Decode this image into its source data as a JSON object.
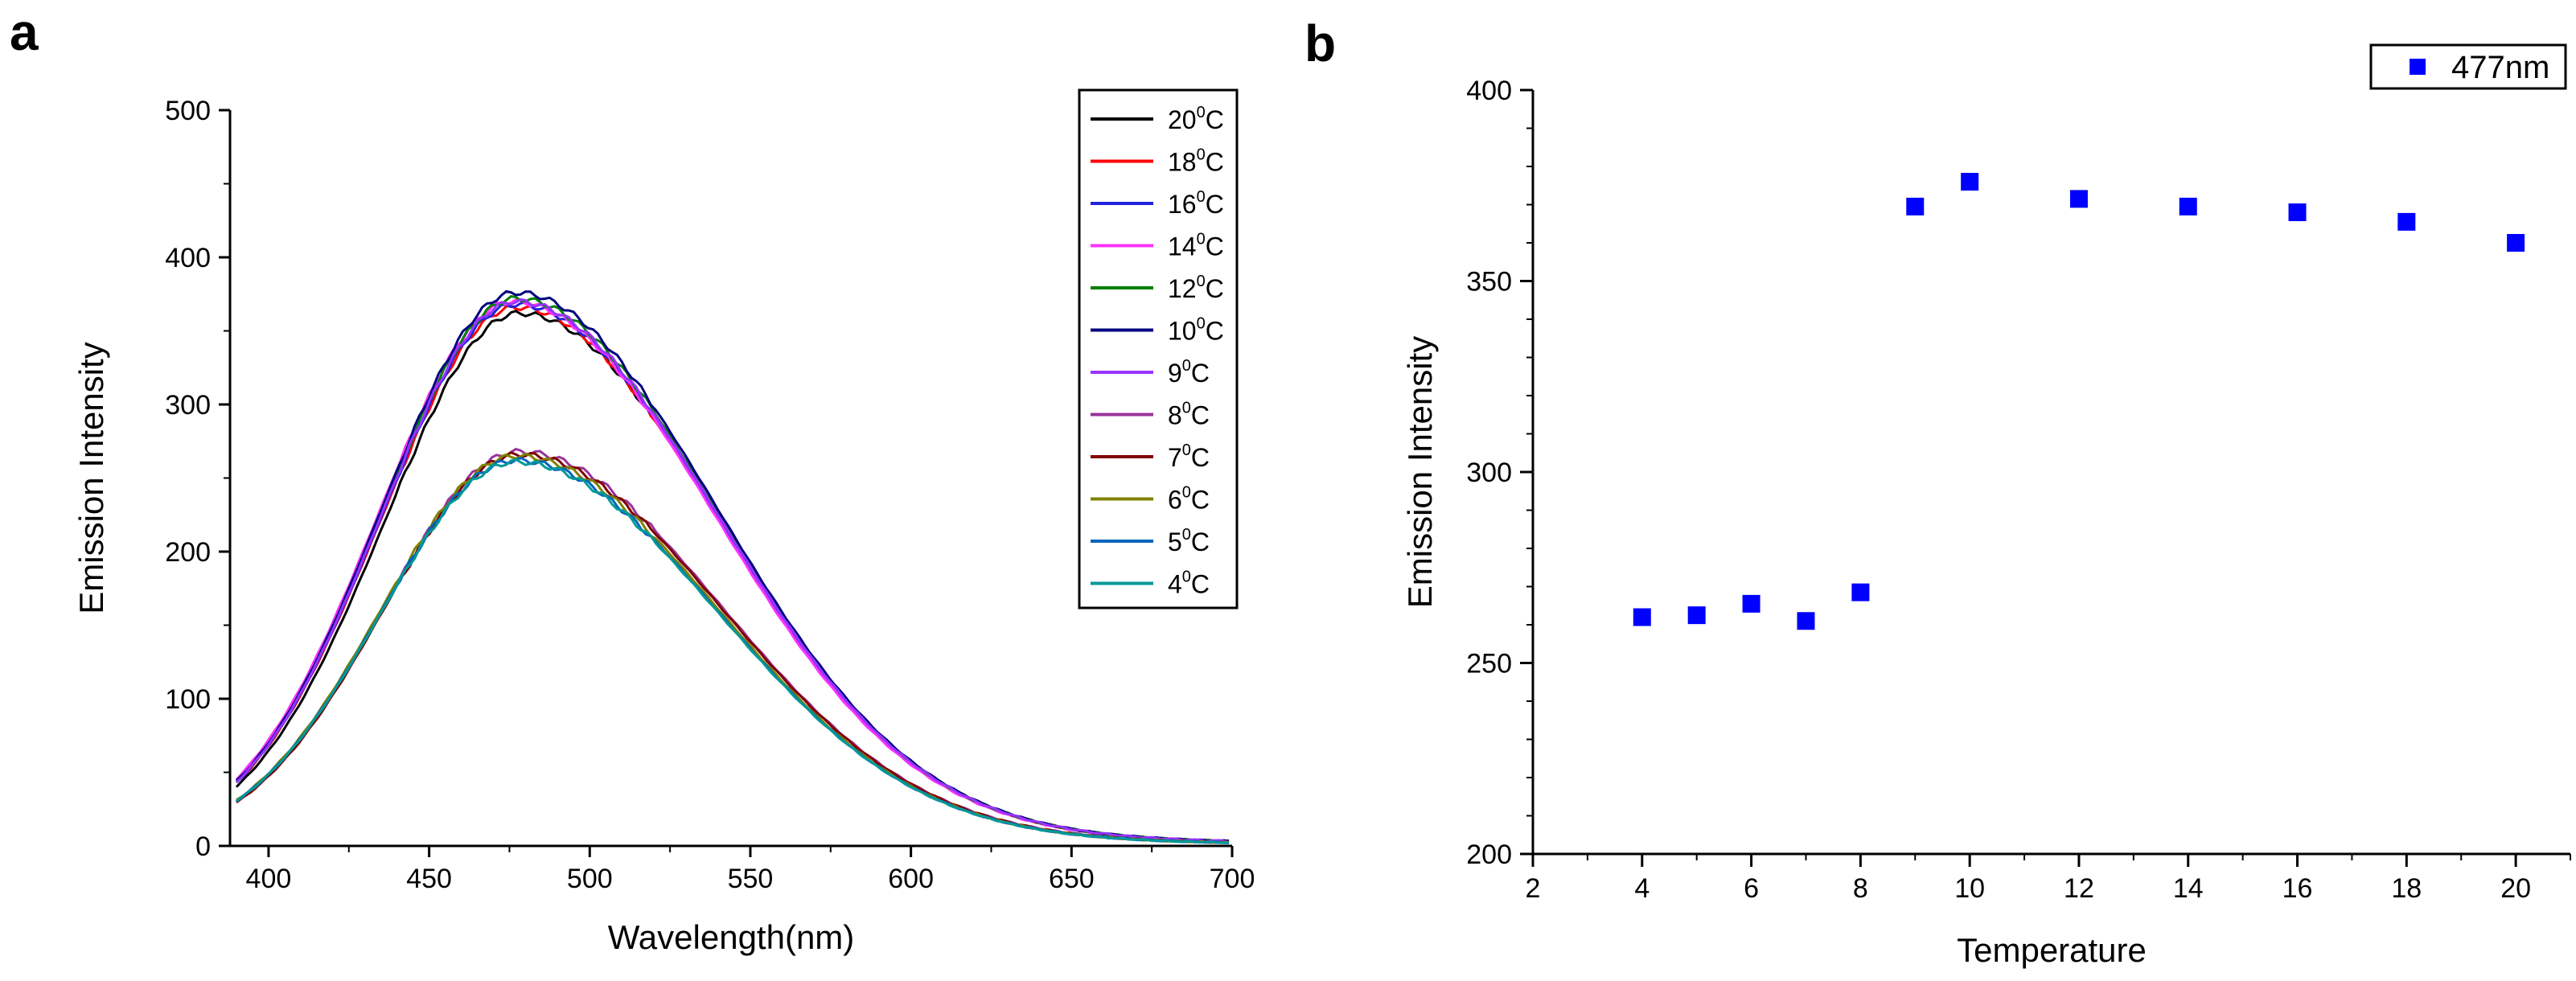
{
  "panels": {
    "a": {
      "letter": "a"
    },
    "b": {
      "letter": "b"
    }
  },
  "chart_data": [
    {
      "type": "line",
      "title": "",
      "xlabel": "Wavelength(nm)",
      "ylabel": "Emission Intensity",
      "xlim": [
        388,
        700
      ],
      "ylim": [
        0,
        500
      ],
      "xticks": [
        400,
        450,
        500,
        550,
        600,
        650,
        700
      ],
      "xtick_labels": [
        "400",
        "450",
        "500",
        "550",
        "600",
        "650",
        "700"
      ],
      "yticks": [
        0,
        100,
        200,
        300,
        400,
        500
      ],
      "ytick_labels": [
        "0",
        "100",
        "200",
        "300",
        "400",
        "500"
      ],
      "legend_position": "top-right",
      "series": [
        {
          "name": "20",
          "unit": "C",
          "deg": "0",
          "color": "#000000",
          "peak_x": 478,
          "peak_y": 362
        },
        {
          "name": "18",
          "unit": "C",
          "deg": "0",
          "color": "#ff0000",
          "peak_x": 477,
          "peak_y": 366
        },
        {
          "name": "16",
          "unit": "C",
          "deg": "0",
          "color": "#2222dd",
          "peak_x": 477,
          "peak_y": 368
        },
        {
          "name": "14",
          "unit": "C",
          "deg": "0",
          "color": "#ff33ff",
          "peak_x": 476,
          "peak_y": 370
        },
        {
          "name": "12",
          "unit": "C",
          "deg": "0",
          "color": "#008000",
          "peak_x": 477,
          "peak_y": 372
        },
        {
          "name": "10",
          "unit": "C",
          "deg": "0",
          "color": "#000080",
          "peak_x": 477,
          "peak_y": 376
        },
        {
          "name": "9",
          "unit": "C",
          "deg": "0",
          "color": "#9933ff",
          "peak_x": 477,
          "peak_y": 370
        },
        {
          "name": "8",
          "unit": "C",
          "deg": "0",
          "color": "#993399",
          "peak_x": 478,
          "peak_y": 268
        },
        {
          "name": "7",
          "unit": "C",
          "deg": "0",
          "color": "#800000",
          "peak_x": 478,
          "peak_y": 266
        },
        {
          "name": "6",
          "unit": "C",
          "deg": "0",
          "color": "#808000",
          "peak_x": 477,
          "peak_y": 265
        },
        {
          "name": "5",
          "unit": "C",
          "deg": "0",
          "color": "#0066bb",
          "peak_x": 477,
          "peak_y": 262
        },
        {
          "name": "4",
          "unit": "C",
          "deg": "0",
          "color": "#009999",
          "peak_x": 477,
          "peak_y": 261
        }
      ]
    },
    {
      "type": "scatter",
      "title": "",
      "xlabel": "Temperature",
      "ylabel": "Emission Intensity",
      "xlim": [
        2,
        21
      ],
      "ylim": [
        200,
        400
      ],
      "xticks": [
        2,
        4,
        6,
        8,
        10,
        12,
        14,
        16,
        18,
        20
      ],
      "xtick_labels": [
        "2",
        "4",
        "6",
        "8",
        "10",
        "12",
        "14",
        "16",
        "18",
        "20"
      ],
      "yticks": [
        200,
        250,
        300,
        350,
        400
      ],
      "ytick_labels": [
        "200",
        "250",
        "300",
        "350",
        "400"
      ],
      "legend_position": "top-right",
      "series": [
        {
          "name": "477nm",
          "color": "#0000ff",
          "x": [
            4,
            5,
            6,
            7,
            8,
            9,
            10,
            12,
            14,
            16,
            18,
            20
          ],
          "y": [
            262,
            262.5,
            265.5,
            261,
            268.5,
            369.5,
            376,
            371.5,
            369.5,
            368,
            365.5,
            360
          ]
        }
      ]
    }
  ]
}
